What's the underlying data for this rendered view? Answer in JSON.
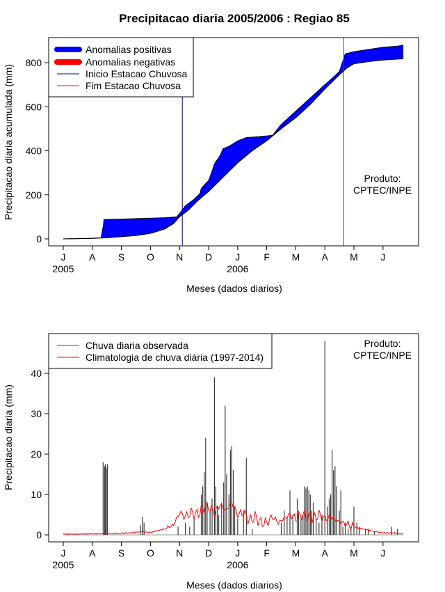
{
  "chart_data": [
    {
      "type": "area",
      "title": "Precipitacao diaria 2005/2006 : Regiao 85",
      "xlabel": "Meses (dados diarios)",
      "ylabel": "Precipitacao diaria acumulada (mm)",
      "ylim": [
        -30,
        920
      ],
      "yticks": [
        0,
        200,
        400,
        600,
        800
      ],
      "xticks": [
        "J",
        "A",
        "S",
        "O",
        "N",
        "D",
        "J",
        "F",
        "M",
        "A",
        "M",
        "J"
      ],
      "year_labels": [
        {
          "label": "2005",
          "at_tick": 0
        },
        {
          "label": "2006",
          "at_tick": 6
        }
      ],
      "legend": [
        {
          "label": "Anomalias positivas",
          "color": "#0000ff",
          "kind": "thick"
        },
        {
          "label": "Anomalias negativas",
          "color": "#ff0000",
          "kind": "thick"
        },
        {
          "label": "Inicio Estacao Chuvosa",
          "color": "#00008b",
          "kind": "thin"
        },
        {
          "label": "Fim Estacao Chuvosa",
          "color": "#ff0000",
          "kind": "thin"
        }
      ],
      "annotation": [
        "Produto:",
        "CPTEC/INPE"
      ],
      "rainy_season_start_month": 4.0,
      "rainy_season_end_month": 9.65,
      "series": [
        {
          "name": "Observado acumulado",
          "months": [
            0,
            1,
            1.3,
            1.38,
            1.4,
            2.0,
            2.5,
            3.0,
            3.5,
            3.9,
            4.0,
            4.2,
            4.5,
            4.7,
            4.75,
            5.0,
            5.1,
            5.2,
            5.4,
            5.5,
            5.7,
            6.0,
            6.3,
            6.5,
            6.8,
            7.2,
            7.5,
            8.0,
            8.5,
            9.0,
            9.3,
            9.5,
            9.6,
            9.7,
            10.0,
            10.5,
            11.0,
            11.5,
            11.7
          ],
          "values": [
            0,
            3,
            5,
            60,
            88,
            90,
            92,
            94,
            96,
            100,
            115,
            150,
            180,
            205,
            230,
            265,
            300,
            340,
            380,
            410,
            420,
            445,
            460,
            462,
            465,
            470,
            520,
            580,
            640,
            700,
            735,
            760,
            800,
            840,
            850,
            860,
            870,
            875,
            880
          ]
        },
        {
          "name": "Climatologia acumulada",
          "months": [
            0,
            1,
            1.5,
            2.0,
            2.5,
            3.0,
            3.5,
            3.8,
            4.0,
            4.3,
            4.6,
            5.0,
            5.5,
            6.0,
            6.5,
            7.0,
            7.5,
            8.0,
            8.5,
            9.0,
            9.5,
            9.75,
            10.0,
            10.5,
            11.0,
            11.5,
            11.7
          ],
          "values": [
            0,
            2,
            5,
            10,
            15,
            25,
            45,
            70,
            100,
            130,
            170,
            215,
            280,
            345,
            400,
            445,
            500,
            550,
            610,
            680,
            745,
            775,
            795,
            805,
            812,
            816,
            818
          ]
        }
      ]
    },
    {
      "type": "bar",
      "xlabel": "Meses (dados diarios)",
      "ylabel": "Precipitacao diaria (mm)",
      "ylim": [
        -2,
        50
      ],
      "yticks": [
        0,
        10,
        20,
        30,
        40
      ],
      "xticks": [
        "J",
        "A",
        "S",
        "O",
        "N",
        "D",
        "J",
        "F",
        "M",
        "A",
        "M",
        "J"
      ],
      "year_labels": [
        {
          "label": "2005",
          "at_tick": 0
        },
        {
          "label": "2006",
          "at_tick": 6
        }
      ],
      "legend": [
        {
          "label": "Chuva diaria observada",
          "color": "#4d4d4d",
          "kind": "thin"
        },
        {
          "label": "Climatologia de chuva diária (1997-2014)",
          "color": "#ff0000",
          "kind": "thin"
        }
      ],
      "annotation": [
        "Produto:",
        "CPTEC/INPE"
      ],
      "bars": [
        [
          1.37,
          18
        ],
        [
          1.42,
          17
        ],
        [
          1.45,
          17.5
        ],
        [
          1.48,
          16.5
        ],
        [
          1.52,
          17.5
        ],
        [
          2.65,
          2.5
        ],
        [
          2.72,
          4.5
        ],
        [
          2.78,
          3
        ],
        [
          3.95,
          2
        ],
        [
          4.2,
          3
        ],
        [
          4.35,
          2
        ],
        [
          4.5,
          4
        ],
        [
          4.75,
          10
        ],
        [
          4.8,
          12
        ],
        [
          4.85,
          15.5
        ],
        [
          4.9,
          24
        ],
        [
          4.95,
          8
        ],
        [
          5.05,
          6
        ],
        [
          5.12,
          9
        ],
        [
          5.2,
          39
        ],
        [
          5.25,
          12
        ],
        [
          5.3,
          7
        ],
        [
          5.35,
          5
        ],
        [
          5.45,
          8
        ],
        [
          5.52,
          13
        ],
        [
          5.57,
          32
        ],
        [
          5.62,
          15
        ],
        [
          5.7,
          10
        ],
        [
          5.75,
          21
        ],
        [
          5.8,
          22
        ],
        [
          5.85,
          16
        ],
        [
          5.9,
          7
        ],
        [
          6.0,
          4
        ],
        [
          6.2,
          6
        ],
        [
          6.3,
          19
        ],
        [
          6.5,
          1.5
        ],
        [
          7.5,
          3
        ],
        [
          7.6,
          6
        ],
        [
          7.7,
          4
        ],
        [
          7.8,
          11
        ],
        [
          7.9,
          5
        ],
        [
          8.05,
          9
        ],
        [
          8.1,
          6
        ],
        [
          8.18,
          4
        ],
        [
          8.25,
          5
        ],
        [
          8.3,
          12
        ],
        [
          8.35,
          11.5
        ],
        [
          8.4,
          12
        ],
        [
          8.45,
          11
        ],
        [
          8.5,
          10
        ],
        [
          8.55,
          6
        ],
        [
          8.6,
          8
        ],
        [
          8.7,
          4
        ],
        [
          8.8,
          3
        ],
        [
          8.9,
          5
        ],
        [
          9.0,
          48
        ],
        [
          9.1,
          7
        ],
        [
          9.15,
          9
        ],
        [
          9.2,
          10
        ],
        [
          9.25,
          21
        ],
        [
          9.3,
          16
        ],
        [
          9.35,
          17
        ],
        [
          9.4,
          12
        ],
        [
          9.5,
          6
        ],
        [
          9.55,
          11
        ],
        [
          9.62,
          2
        ],
        [
          9.7,
          3
        ],
        [
          9.8,
          1.5
        ],
        [
          9.9,
          2
        ],
        [
          10.0,
          7
        ],
        [
          10.1,
          3
        ],
        [
          10.2,
          2
        ],
        [
          10.4,
          1.5
        ],
        [
          10.5,
          1.5
        ],
        [
          10.7,
          1
        ],
        [
          11.3,
          2
        ],
        [
          11.5,
          1.5
        ]
      ],
      "climatology": {
        "months": [
          0,
          0.5,
          1.0,
          1.5,
          2.0,
          2.3,
          2.7,
          3.0,
          3.5,
          3.8,
          4.0,
          4.2,
          4.4,
          4.6,
          4.8,
          5.0,
          5.2,
          5.4,
          5.6,
          5.8,
          6.0,
          6.2,
          6.4,
          6.6,
          6.8,
          7.0,
          7.2,
          7.4,
          7.6,
          7.8,
          8.0,
          8.2,
          8.4,
          8.6,
          8.8,
          9.0,
          9.2,
          9.4,
          9.6,
          9.8,
          10.0,
          10.3,
          10.6,
          11.0,
          11.4,
          11.7
        ],
        "values": [
          0.2,
          0.2,
          0.3,
          0.3,
          0.4,
          0.5,
          0.8,
          0.6,
          1.5,
          2.5,
          5.5,
          4.5,
          5.5,
          5,
          6.5,
          7,
          5.5,
          7.5,
          6,
          8,
          5,
          5.5,
          3.5,
          4.5,
          3,
          3,
          4.5,
          3,
          4,
          5,
          4,
          5,
          4.5,
          4,
          5,
          4,
          4.5,
          3.5,
          3,
          2.5,
          2,
          1.5,
          1,
          0.5,
          0.5,
          0.3
        ]
      }
    }
  ]
}
